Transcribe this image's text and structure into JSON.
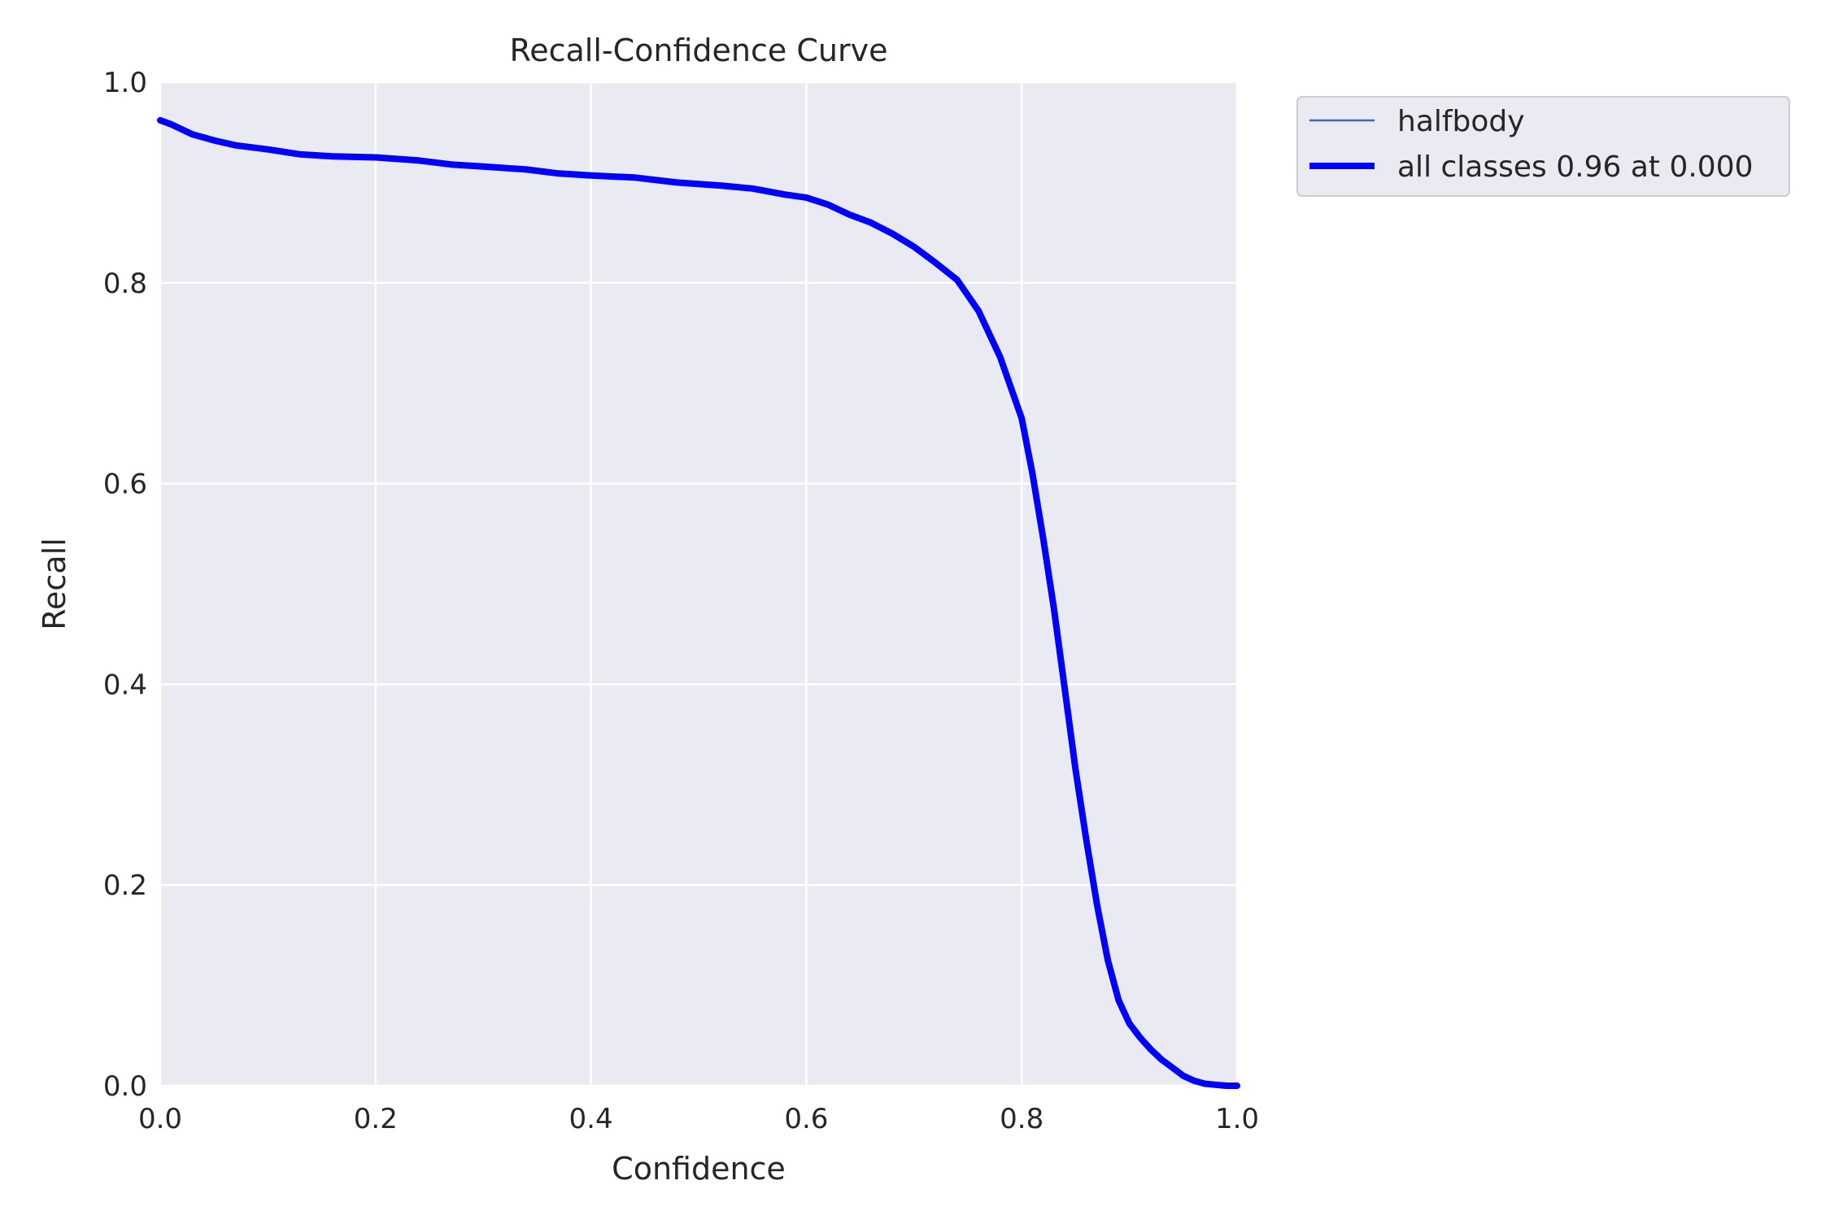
{
  "chart_data": {
    "type": "line",
    "title": "Recall-Confidence Curve",
    "xlabel": "Confidence",
    "ylabel": "Recall",
    "xlim": [
      0,
      1
    ],
    "ylim": [
      0,
      1
    ],
    "xticks": [
      "0.0",
      "0.2",
      "0.4",
      "0.6",
      "0.8",
      "1.0"
    ],
    "yticks": [
      "0.0",
      "0.2",
      "0.4",
      "0.6",
      "0.8",
      "1.0"
    ],
    "grid": true,
    "legend_position": "outside top-right",
    "colors": {
      "plot_background": "#EAEAF2",
      "grid": "#FFFFFF",
      "halfbody": "#4363C8",
      "all_classes": "#0000FF"
    },
    "series": [
      {
        "name": "halfbody",
        "x": [
          0.0,
          0.01,
          0.02,
          0.03,
          0.05,
          0.07,
          0.1,
          0.13,
          0.16,
          0.2,
          0.24,
          0.27,
          0.3,
          0.34,
          0.37,
          0.4,
          0.44,
          0.48,
          0.52,
          0.55,
          0.58,
          0.6,
          0.62,
          0.64,
          0.66,
          0.68,
          0.7,
          0.72,
          0.74,
          0.76,
          0.78,
          0.8,
          0.81,
          0.82,
          0.83,
          0.84,
          0.85,
          0.86,
          0.87,
          0.88,
          0.89,
          0.9,
          0.91,
          0.92,
          0.93,
          0.94,
          0.95,
          0.96,
          0.97,
          0.98,
          0.99,
          1.0
        ],
        "y": [
          0.962,
          0.958,
          0.953,
          0.948,
          0.942,
          0.937,
          0.933,
          0.928,
          0.926,
          0.925,
          0.922,
          0.918,
          0.916,
          0.913,
          0.909,
          0.907,
          0.905,
          0.9,
          0.897,
          0.894,
          0.888,
          0.885,
          0.878,
          0.868,
          0.86,
          0.849,
          0.836,
          0.82,
          0.806,
          0.772,
          0.726,
          0.667,
          0.61,
          0.545,
          0.475,
          0.395,
          0.315,
          0.245,
          0.18,
          0.12,
          0.085,
          0.062,
          0.048,
          0.036,
          0.026,
          0.018,
          0.01,
          0.005,
          0.002,
          0.001,
          0.0,
          0.0
        ]
      },
      {
        "name": "all classes 0.96 at 0.000",
        "x": [
          0.0,
          0.01,
          0.02,
          0.03,
          0.05,
          0.07,
          0.1,
          0.13,
          0.16,
          0.2,
          0.24,
          0.27,
          0.3,
          0.34,
          0.37,
          0.4,
          0.44,
          0.48,
          0.52,
          0.55,
          0.58,
          0.6,
          0.62,
          0.64,
          0.66,
          0.68,
          0.7,
          0.72,
          0.74,
          0.76,
          0.78,
          0.8,
          0.81,
          0.82,
          0.83,
          0.84,
          0.85,
          0.86,
          0.87,
          0.88,
          0.89,
          0.9,
          0.91,
          0.92,
          0.93,
          0.94,
          0.95,
          0.96,
          0.97,
          0.98,
          0.99,
          1.0
        ],
        "y": [
          0.962,
          0.958,
          0.953,
          0.948,
          0.942,
          0.937,
          0.933,
          0.928,
          0.926,
          0.925,
          0.922,
          0.918,
          0.916,
          0.913,
          0.909,
          0.907,
          0.905,
          0.9,
          0.897,
          0.894,
          0.888,
          0.885,
          0.878,
          0.868,
          0.86,
          0.849,
          0.836,
          0.82,
          0.803,
          0.772,
          0.726,
          0.665,
          0.61,
          0.545,
          0.475,
          0.395,
          0.315,
          0.245,
          0.18,
          0.125,
          0.085,
          0.062,
          0.048,
          0.036,
          0.026,
          0.018,
          0.01,
          0.005,
          0.002,
          0.001,
          0.0,
          0.0
        ]
      }
    ]
  }
}
